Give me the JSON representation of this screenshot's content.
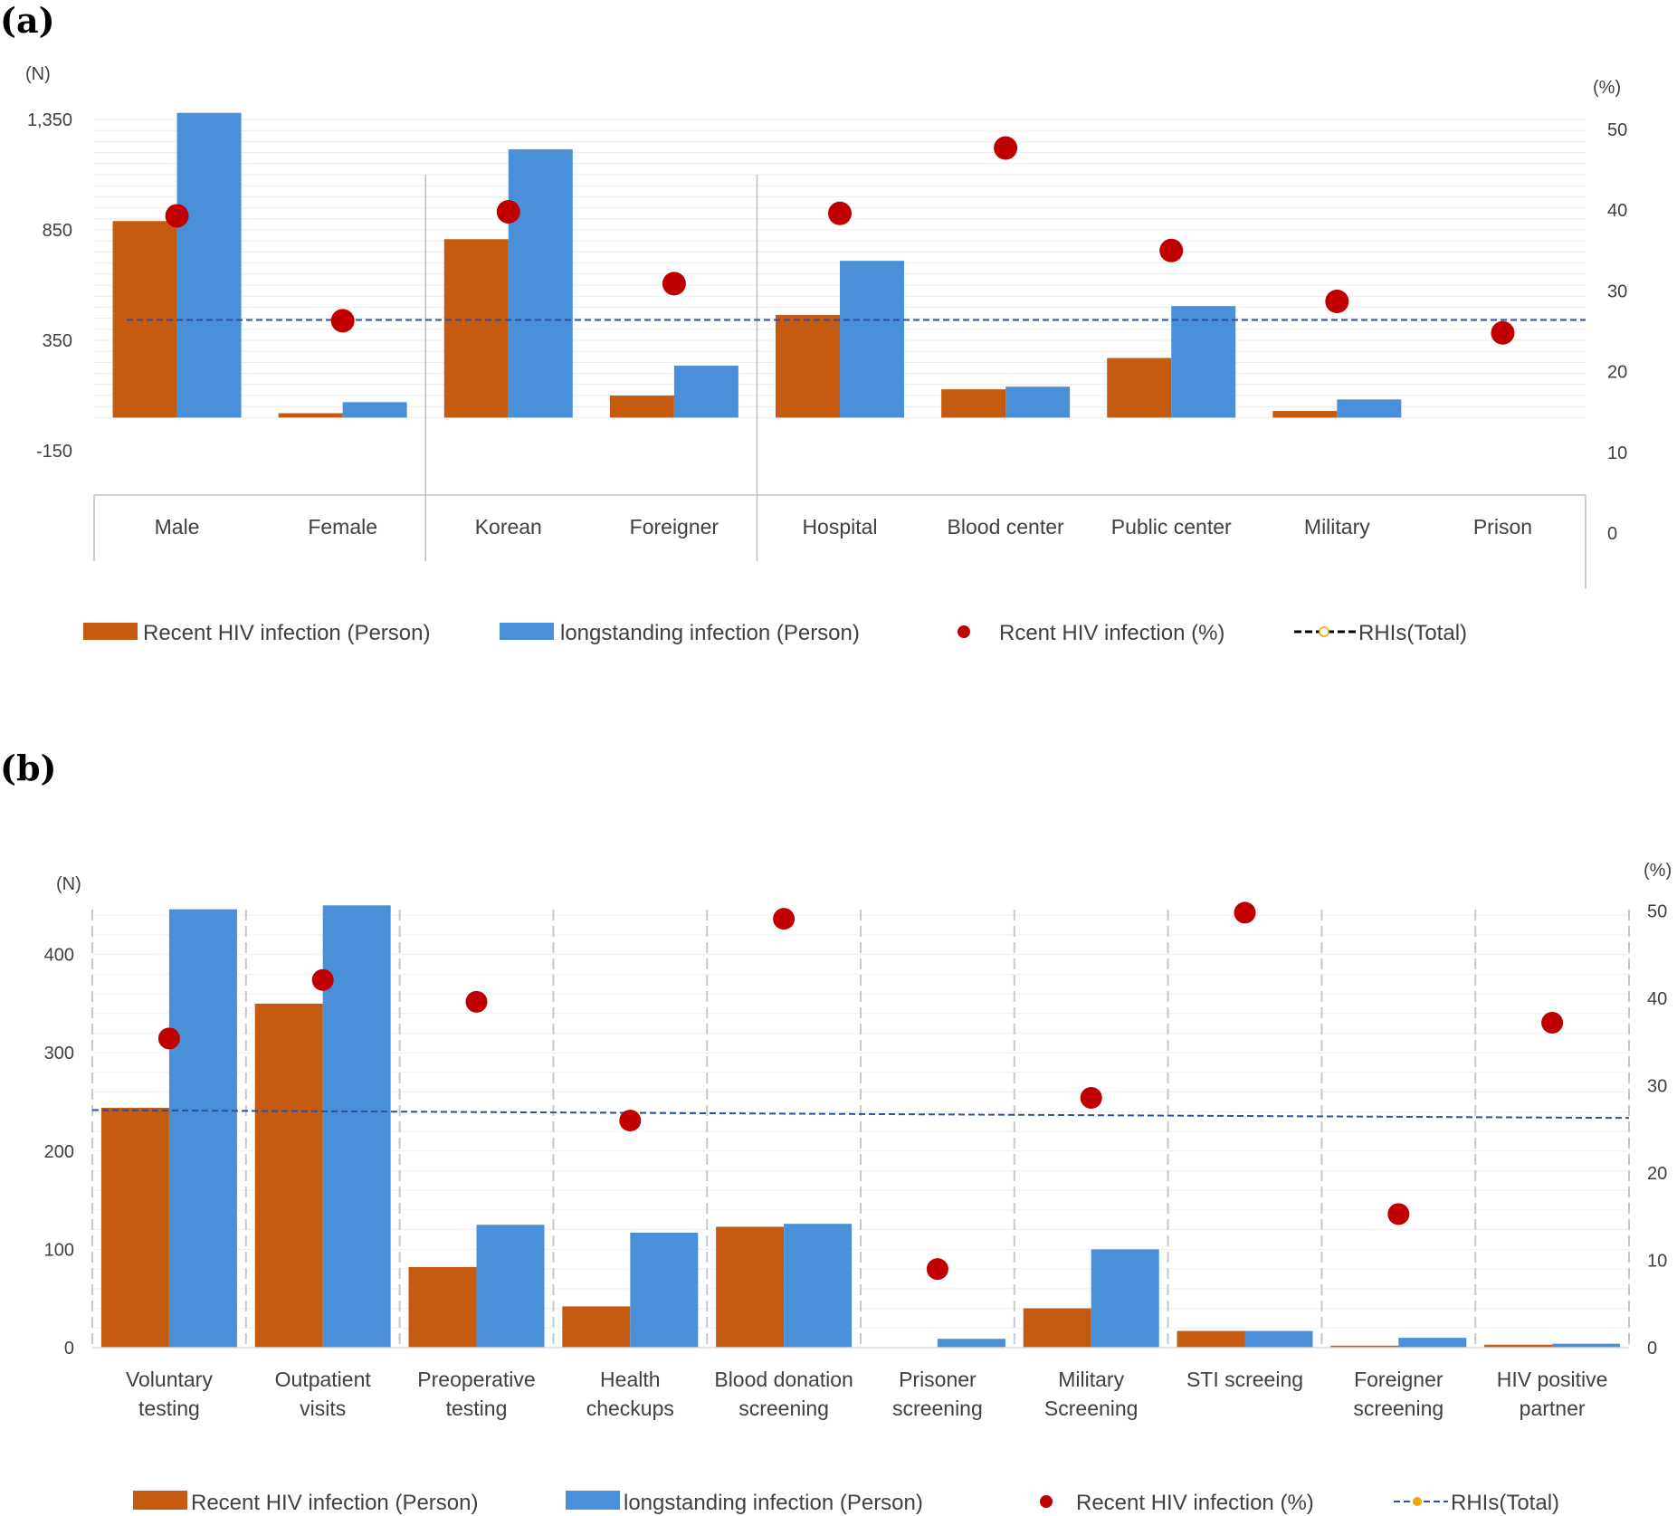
{
  "colors": {
    "recent": "#c55a11",
    "longstanding": "#4a90d9",
    "dot": "#c00000",
    "total_line": "#2f4f9f",
    "grid": "#d9d9d9"
  },
  "chart_data": [
    {
      "type": "bar",
      "panel_label": "(a)",
      "left_unit": "(N)",
      "right_unit": "(%)",
      "left_ticks": [
        "1,350",
        "850",
        "350",
        "-150"
      ],
      "right_ticks": [
        "50",
        "40",
        "30",
        "20",
        "10",
        "0"
      ],
      "ylim_left": [
        -150,
        1350
      ],
      "ylim_right": [
        0,
        50
      ],
      "groups": [
        {
          "categories": [
            "Male",
            "Female"
          ]
        },
        {
          "categories": [
            "Korean",
            "Foreigner"
          ]
        },
        {
          "categories": [
            "Hospital",
            "Blood center",
            "Public center",
            "Military",
            "Prison"
          ]
        }
      ],
      "categories": [
        "Male",
        "Female",
        "Korean",
        "Foreigner",
        "Hospital",
        "Blood center",
        "Public center",
        "Military",
        "Prison"
      ],
      "series": [
        {
          "name": "Recent HIV infection (Person)",
          "axis": "left",
          "values": [
            890,
            20,
            808,
            100,
            465,
            128,
            270,
            30,
            0
          ]
        },
        {
          "name": "longstanding infection (Person)",
          "axis": "left",
          "values": [
            1380,
            70,
            1215,
            235,
            710,
            140,
            505,
            82,
            0
          ]
        },
        {
          "name": "Rcent HIV infection (%)",
          "axis": "right",
          "values": [
            39.3,
            26.3,
            39.8,
            30.9,
            39.6,
            47.7,
            35.0,
            28.7,
            24.8
          ]
        }
      ],
      "reference_line": {
        "name": "RHIs(Total)",
        "axis": "right",
        "value": 26.4
      },
      "legend": [
        {
          "label": "Recent HIV infection (Person)",
          "kind": "bar",
          "series": "recent"
        },
        {
          "label": "longstanding infection (Person)",
          "kind": "bar",
          "series": "longstanding"
        },
        {
          "label": "Rcent HIV infection (%)",
          "kind": "dot"
        },
        {
          "label": "RHIs(Total)",
          "kind": "line"
        }
      ]
    },
    {
      "type": "bar",
      "panel_label": "(b)",
      "left_unit": "(N)",
      "right_unit": "(%)",
      "left_ticks": [
        "400",
        "300",
        "200",
        "100",
        "0"
      ],
      "right_ticks": [
        "50",
        "40",
        "30",
        "20",
        "10",
        "0"
      ],
      "ylim_left": [
        0,
        450
      ],
      "ylim_right": [
        0,
        50
      ],
      "categories": [
        [
          "Voluntary",
          "testing"
        ],
        [
          "Outpatient",
          "visits"
        ],
        [
          "Preoperative",
          "testing"
        ],
        [
          "Health",
          "checkups"
        ],
        [
          "Blood donation",
          "screening"
        ],
        [
          "Prisoner",
          "screening"
        ],
        [
          "Military",
          "Screening"
        ],
        [
          "STI screeing"
        ],
        [
          "Foreigner",
          "screening"
        ],
        [
          "HIV positive",
          "partner"
        ]
      ],
      "series": [
        {
          "name": "Recent HIV infection (Person)",
          "axis": "left",
          "values": [
            244,
            350,
            82,
            42,
            123,
            0,
            40,
            17,
            2,
            3
          ]
        },
        {
          "name": "longstanding infection (Person)",
          "axis": "left",
          "values": [
            446,
            450,
            125,
            117,
            126,
            9,
            100,
            17,
            10,
            4
          ]
        },
        {
          "name": "Recent HIV infection (%)",
          "axis": "right",
          "values": [
            35.4,
            42.1,
            39.6,
            26.0,
            49.1,
            9.0,
            28.6,
            49.8,
            15.3,
            37.2
          ]
        }
      ],
      "reference_line": {
        "name": "RHIs(Total)",
        "axis": "right",
        "value": 27.2,
        "value_end": 26.3
      },
      "legend": [
        {
          "label": "Recent HIV infection (Person)",
          "kind": "bar",
          "series": "recent"
        },
        {
          "label": "longstanding infection (Person)",
          "kind": "bar",
          "series": "longstanding"
        },
        {
          "label": "Recent HIV infection (%)",
          "kind": "dot"
        },
        {
          "label": "RHIs(Total)",
          "kind": "line"
        }
      ]
    }
  ]
}
